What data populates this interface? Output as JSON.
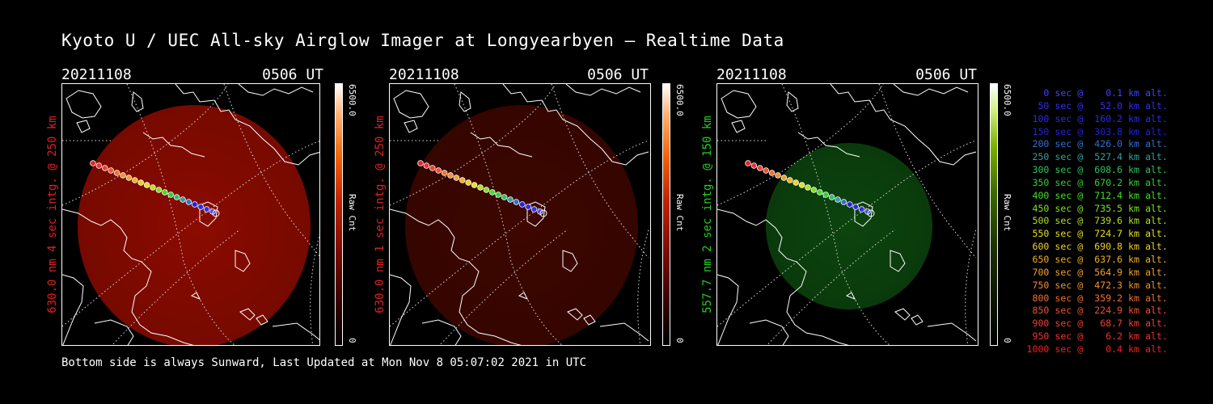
{
  "title": "Kyoto U / UEC All-sky Airglow Imager at Longyearbyen — Realtime Data",
  "footer": "Bottom side is always Sunward, Last Updated at Mon Nov  8 05:07:02 2021 in UTC",
  "panels": [
    {
      "date": "20211108",
      "time": "0506 UT",
      "label": "630.0 nm 4 sec intg. @ 250 km",
      "label_color": "#e02020",
      "cb_max": "6500.0",
      "cb_min": "0",
      "cb_label": "Raw Cnt",
      "colormap": "red",
      "brightness": 0.9
    },
    {
      "date": "20211108",
      "time": "0506 UT",
      "label": "630.0 nm 1 sec intg. @ 250 km",
      "label_color": "#e02020",
      "cb_max": "6500.0",
      "cb_min": "0",
      "cb_label": "Raw Cnt",
      "colormap": "red",
      "brightness": 0.2
    },
    {
      "date": "20211108",
      "time": "0506 UT",
      "label": "557.7 nm 2 sec intg. @ 150 km",
      "label_color": "#20d020",
      "cb_max": "6500.0",
      "cb_min": "0",
      "cb_label": "Raw Cnt",
      "colormap": "green",
      "brightness": 0.55
    }
  ],
  "legend": [
    {
      "text": "   0 sec @    0.1 km alt.",
      "color": "#4040ff"
    },
    {
      "text": "  50 sec @   52.0 km alt.",
      "color": "#3030ee"
    },
    {
      "text": " 100 sec @  160.2 km alt.",
      "color": "#2a2aee"
    },
    {
      "text": " 150 sec @  303.8 km alt.",
      "color": "#2222dd"
    },
    {
      "text": " 200 sec @  426.0 km alt.",
      "color": "#3070d0"
    },
    {
      "text": " 250 sec @  527.4 km alt.",
      "color": "#30a0a0"
    },
    {
      "text": " 300 sec @  608.6 km alt.",
      "color": "#30c060"
    },
    {
      "text": " 350 sec @  670.2 km alt.",
      "color": "#30d030"
    },
    {
      "text": " 400 sec @  712.4 km alt.",
      "color": "#40e020"
    },
    {
      "text": " 450 sec @  735.5 km alt.",
      "color": "#80e020"
    },
    {
      "text": " 500 sec @  739.6 km alt.",
      "color": "#b0e020"
    },
    {
      "text": " 550 sec @  724.7 km alt.",
      "color": "#e0e020"
    },
    {
      "text": " 600 sec @  690.8 km alt.",
      "color": "#f0d020"
    },
    {
      "text": " 650 sec @  637.6 km alt.",
      "color": "#f0b020"
    },
    {
      "text": " 700 sec @  564.9 km alt.",
      "color": "#f0a030"
    },
    {
      "text": " 750 sec @  472.3 km alt.",
      "color": "#f09030"
    },
    {
      "text": " 800 sec @  359.2 km alt.",
      "color": "#f07030"
    },
    {
      "text": " 850 sec @  224.9 km alt.",
      "color": "#f05030"
    },
    {
      "text": " 900 sec @   68.7 km alt.",
      "color": "#f04030"
    },
    {
      "text": " 950 sec @    6.2 km alt.",
      "color": "#f03030"
    },
    {
      "text": "1000 sec @    0.4 km alt.",
      "color": "#f02020"
    }
  ]
}
